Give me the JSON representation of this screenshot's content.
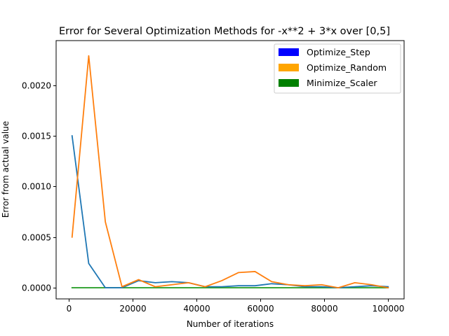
{
  "chart_data": {
    "type": "line",
    "title": "Error for Several Optimization Methods for -x**2 + 3*x over [0,5]",
    "xlabel": "Number of iterations",
    "ylabel": "Error from actual value",
    "xlim": [
      -4000,
      105000
    ],
    "ylim": [
      -0.00011,
      0.00244
    ],
    "x": [
      1000,
      6210,
      11420,
      16630,
      21840,
      27050,
      32260,
      37470,
      42680,
      47890,
      53100,
      58310,
      63520,
      68730,
      73940,
      79150,
      84360,
      89570,
      94780,
      100000
    ],
    "series": [
      {
        "color": "#1f77b4",
        "values": [
          0.0015,
          0.00024,
          0.0,
          0.0,
          7e-05,
          5e-05,
          6e-05,
          5e-05,
          1e-05,
          1e-05,
          2e-05,
          2e-05,
          4e-05,
          3e-05,
          1e-05,
          1e-05,
          0.0,
          1e-05,
          2e-05,
          1e-05
        ]
      },
      {
        "color": "#ff7f0e",
        "values": [
          0.0005,
          0.00229,
          0.00065,
          1e-05,
          8e-05,
          1e-05,
          3e-05,
          5e-05,
          1e-05,
          7e-05,
          0.00015,
          0.00016,
          6e-05,
          3e-05,
          2e-05,
          3e-05,
          0.0,
          5e-05,
          3e-05,
          0.0
        ]
      },
      {
        "color": "#2ca02c",
        "values": [
          0.0,
          0.0,
          0.0,
          0.0,
          0.0,
          0.0,
          0.0,
          0.0,
          0.0,
          0.0,
          0.0,
          0.0,
          0.0,
          0.0,
          0.0,
          0.0,
          0.0,
          0.0,
          0.0,
          0.0
        ]
      }
    ],
    "x_ticks": [
      0,
      20000,
      40000,
      60000,
      80000,
      100000
    ],
    "x_tick_labels": [
      "0",
      "20000",
      "40000",
      "60000",
      "80000",
      "100000"
    ],
    "y_ticks": [
      0.0,
      0.0005,
      0.001,
      0.0015,
      0.002
    ],
    "y_tick_labels": [
      "0.0000",
      "0.0005",
      "0.0010",
      "0.0015",
      "0.0020"
    ],
    "grid": false,
    "legend": {
      "placement": "top-right",
      "entries": [
        {
          "label": "Optimize_Step",
          "color": "#0000ff"
        },
        {
          "label": "Optimize_Random",
          "color": "#ffa500"
        },
        {
          "label": "Minimize_Scaler",
          "color": "#008000"
        }
      ]
    }
  }
}
